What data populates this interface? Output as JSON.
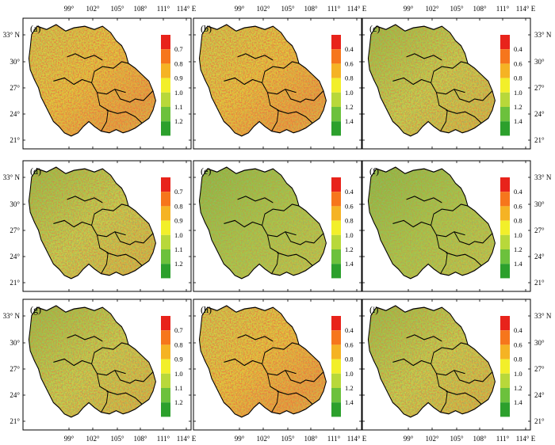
{
  "figure": {
    "top_lon_labels": [
      "99°",
      "102°",
      "105°",
      "108°",
      "111°",
      "114° E"
    ],
    "bottom_lon_labels": [
      "99°",
      "102°",
      "105°",
      "108°",
      "111°",
      "114° E"
    ],
    "left_lat_labels": [
      "33° N",
      "30°",
      "27°",
      "24°",
      "21°"
    ],
    "right_lat_labels": [
      "33° N",
      "30°",
      "27°",
      "24°",
      "21°"
    ]
  },
  "legends": {
    "setA": {
      "labels": [
        "0.7",
        "0.8",
        "0.9",
        "1.0",
        "1.1",
        "1.2"
      ],
      "colors": [
        "#e8231b",
        "#f6761c",
        "#f5b324",
        "#f2ef2a",
        "#b8d83a",
        "#6cc13c",
        "#2ca02c"
      ]
    },
    "setB": {
      "labels": [
        "0.4",
        "0.6",
        "0.8",
        "1.0",
        "1.2",
        "1.4"
      ],
      "colors": [
        "#e8231b",
        "#f6761c",
        "#f5b324",
        "#f2ef2a",
        "#b8d83a",
        "#6cc13c",
        "#2ca02c"
      ]
    }
  },
  "panels": [
    {
      "label": "(a)",
      "legend": "setA",
      "tone": "warm"
    },
    {
      "label": "(b)",
      "legend": "setB",
      "tone": "warm"
    },
    {
      "label": "(c)",
      "legend": "setB",
      "tone": "mixed"
    },
    {
      "label": "(d)",
      "legend": "setA",
      "tone": "mixed"
    },
    {
      "label": "(e)",
      "legend": "setB",
      "tone": "cool"
    },
    {
      "label": "(f)",
      "legend": "setB",
      "tone": "cool"
    },
    {
      "label": "(g)",
      "legend": "setA",
      "tone": "mixed"
    },
    {
      "label": "(h)",
      "legend": "setB",
      "tone": "warm"
    },
    {
      "label": "(i)",
      "legend": "setB",
      "tone": "mixed"
    }
  ]
}
